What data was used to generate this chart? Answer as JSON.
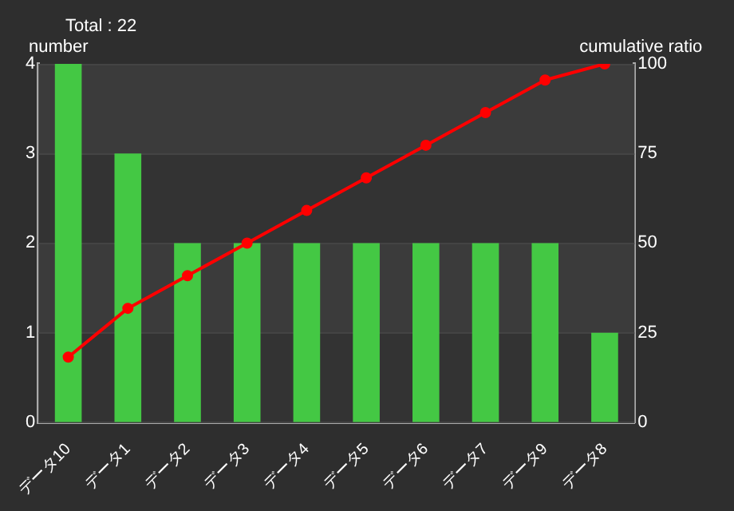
{
  "chart_data": {
    "type": "bar",
    "title": "Total : 22",
    "ylabel": "number",
    "y2label": "cumulative ratio",
    "categories": [
      "データ10",
      "データ1",
      "データ2",
      "データ3",
      "データ4",
      "データ5",
      "データ6",
      "データ7",
      "データ9",
      "データ8"
    ],
    "series": [
      {
        "color": "#44c844",
        "values": [
          4,
          3,
          2,
          2,
          2,
          2,
          2,
          2,
          2,
          1
        ]
      },
      {
        "type": "line",
        "axis": "y2",
        "color": "#ff0000",
        "values": [
          18.2,
          31.8,
          40.9,
          50,
          59.1,
          68.2,
          77.3,
          86.4,
          95.5,
          100
        ]
      }
    ],
    "ylim": [
      0,
      4
    ],
    "yticks": [
      0,
      1,
      2,
      3,
      4
    ],
    "y2lim": [
      0,
      100
    ],
    "y2ticks": [
      0,
      25,
      50,
      75,
      100
    ],
    "grid": "y",
    "legend": false,
    "marker": "circle"
  }
}
